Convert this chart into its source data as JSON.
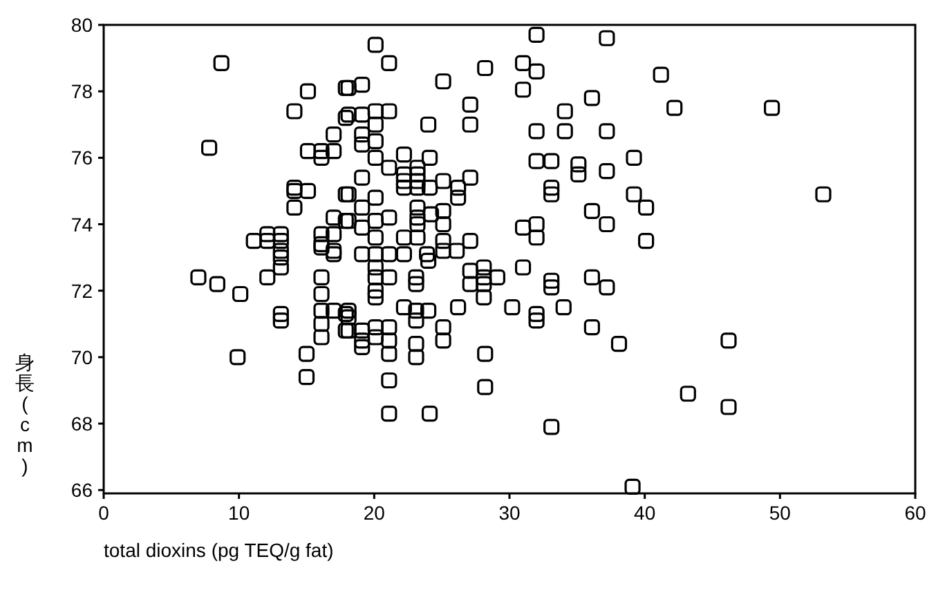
{
  "chart_data": {
    "type": "scatter",
    "xlabel": "total dioxins (pg TEQ/g fat)",
    "ylabel": "身長(cm)",
    "xlim": [
      0,
      60
    ],
    "ylim": [
      65.9,
      80
    ],
    "xticks": [
      0,
      10,
      20,
      30,
      40,
      50,
      60
    ],
    "yticks": [
      66,
      68,
      70,
      72,
      74,
      76,
      78,
      80
    ],
    "marker": "square",
    "series": [
      {
        "color": "#000000",
        "x": [
          8.7,
          15.1,
          17.9,
          14.1,
          17.9,
          7.8,
          17.0,
          15.1,
          16.1,
          16.1,
          17.0,
          14.1,
          14.1,
          15.1,
          14.1,
          17.9,
          17.0,
          17.9,
          11.1,
          12.1,
          12.1,
          13.1,
          13.1,
          13.1,
          13.1,
          13.1,
          16.1,
          16.1,
          17.0,
          17.0,
          16.1,
          17.0,
          7.0,
          8.4,
          10.1,
          12.1,
          16.1,
          16.1,
          13.1,
          13.1,
          16.1,
          16.1,
          16.1,
          17.0,
          17.9,
          17.9,
          9.9,
          15.0,
          15.0,
          20.1,
          21.1,
          28.2,
          32.0,
          31.0,
          32.0,
          18.1,
          19.1,
          25.1,
          31.0,
          27.1,
          34.1,
          18.1,
          19.1,
          20.1,
          21.1,
          20.1,
          24.0,
          27.1,
          32.0,
          34.1,
          19.1,
          19.1,
          20.1,
          20.1,
          22.2,
          24.1,
          32.0,
          33.1,
          35.1,
          35.1,
          21.1,
          23.2,
          23.2,
          23.2,
          23.2,
          22.2,
          22.2,
          22.2,
          19.1,
          24.1,
          25.1,
          27.1,
          26.2,
          26.2,
          33.1,
          33.1,
          18.1,
          19.1,
          20.1,
          18.1,
          19.1,
          20.1,
          21.1,
          23.2,
          23.2,
          23.2,
          24.2,
          25.1,
          25.1,
          31.0,
          32.0,
          32.0,
          20.1,
          22.2,
          23.2,
          25.1,
          25.1,
          26.1,
          27.1,
          19.1,
          20.1,
          21.1,
          22.2,
          23.9,
          20.1,
          20.1,
          21.1,
          23.1,
          23.1,
          24.0,
          27.1,
          27.1,
          28.1,
          28.1,
          28.1,
          28.1,
          29.1,
          31.0,
          33.1,
          33.1,
          20.1,
          20.1,
          18.1,
          18.1,
          22.2,
          23.1,
          24.0,
          23.1,
          26.2,
          30.2,
          32.0,
          32.0,
          34.0,
          18.1,
          19.1,
          19.1,
          19.1,
          20.1,
          20.1,
          21.1,
          21.1,
          21.1,
          25.1,
          25.1,
          23.1,
          23.1,
          28.2,
          21.1,
          28.2,
          21.1,
          24.1,
          33.1,
          37.2,
          41.2,
          36.1,
          42.2,
          49.4,
          37.2,
          39.2,
          37.2,
          39.2,
          40.1,
          36.1,
          37.2,
          40.1,
          53.2,
          36.1,
          37.2,
          36.1,
          38.1,
          46.2,
          43.2,
          46.2,
          39.1
        ],
        "values": [
          78.85,
          78.0,
          78.1,
          77.4,
          77.2,
          76.3,
          76.7,
          76.2,
          76.2,
          76.0,
          76.2,
          75.1,
          75.0,
          75.0,
          74.5,
          74.9,
          74.2,
          74.1,
          73.5,
          73.7,
          73.5,
          73.7,
          73.5,
          73.2,
          73.0,
          72.7,
          73.7,
          73.4,
          73.7,
          73.2,
          73.3,
          73.1,
          72.4,
          72.2,
          71.9,
          72.4,
          72.4,
          71.9,
          71.3,
          71.1,
          71.4,
          71.0,
          70.6,
          71.4,
          71.3,
          70.8,
          70.0,
          70.1,
          69.4,
          79.4,
          78.85,
          78.7,
          79.7,
          78.85,
          78.6,
          78.1,
          78.2,
          78.3,
          78.05,
          77.6,
          77.4,
          77.3,
          77.3,
          77.4,
          77.4,
          77.0,
          77.0,
          77.0,
          76.8,
          76.8,
          76.7,
          76.4,
          76.5,
          76.0,
          76.1,
          76.0,
          75.9,
          75.9,
          75.8,
          75.5,
          75.7,
          75.7,
          75.5,
          75.3,
          75.1,
          75.5,
          75.3,
          75.1,
          75.4,
          75.1,
          75.3,
          75.4,
          75.1,
          74.8,
          75.1,
          74.9,
          74.9,
          74.5,
          74.8,
          74.1,
          73.9,
          74.1,
          74.2,
          74.5,
          74.2,
          74.0,
          74.3,
          74.4,
          74.0,
          73.9,
          74.0,
          73.6,
          73.6,
          73.6,
          73.6,
          73.5,
          73.2,
          73.2,
          73.5,
          73.1,
          73.1,
          73.1,
          73.1,
          73.1,
          72.7,
          72.4,
          72.4,
          72.4,
          72.2,
          72.9,
          72.6,
          72.2,
          72.7,
          72.4,
          72.2,
          71.8,
          72.4,
          72.7,
          72.3,
          72.1,
          72.0,
          71.8,
          71.4,
          71.2,
          71.5,
          71.4,
          71.4,
          71.1,
          71.5,
          71.5,
          71.3,
          71.1,
          71.5,
          70.8,
          70.8,
          70.5,
          70.3,
          70.9,
          70.6,
          70.9,
          70.5,
          70.1,
          70.9,
          70.5,
          70.4,
          70.0,
          70.1,
          69.3,
          69.1,
          68.3,
          68.3,
          67.9,
          79.6,
          78.5,
          77.8,
          77.5,
          77.5,
          76.8,
          76.0,
          75.6,
          74.9,
          74.5,
          74.4,
          74.0,
          73.5,
          74.9,
          72.4,
          72.1,
          70.9,
          70.4,
          70.5,
          68.9,
          68.5,
          66.1
        ]
      }
    ]
  }
}
